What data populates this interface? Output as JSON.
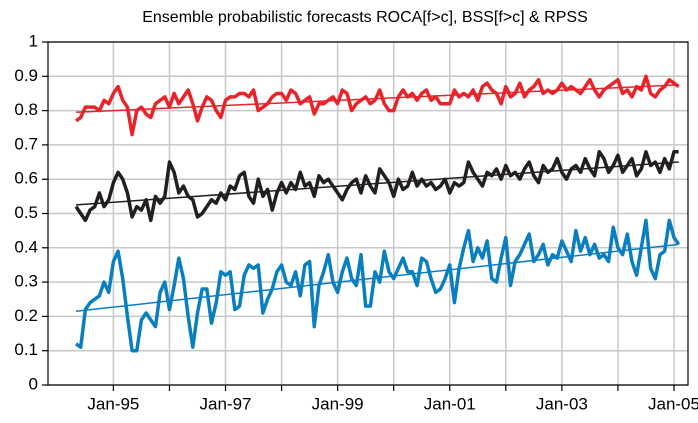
{
  "chart_data": {
    "type": "line",
    "title": "Ensemble probabilistic forecasts ROCA[f>c], BSS[f>c] & RPSS",
    "x": [
      "1994-05",
      "1994-06",
      "1994-07",
      "1994-08",
      "1994-09",
      "1994-10",
      "1994-11",
      "1994-12",
      "1995-01",
      "1995-02",
      "1995-03",
      "1995-04",
      "1995-05",
      "1995-06",
      "1995-07",
      "1995-08",
      "1995-09",
      "1995-10",
      "1995-11",
      "1995-12",
      "1996-01",
      "1996-02",
      "1996-03",
      "1996-04",
      "1996-05",
      "1996-06",
      "1996-07",
      "1996-08",
      "1996-09",
      "1996-10",
      "1996-11",
      "1996-12",
      "1997-01",
      "1997-02",
      "1997-03",
      "1997-04",
      "1997-05",
      "1997-06",
      "1997-07",
      "1997-08",
      "1997-09",
      "1997-10",
      "1997-11",
      "1997-12",
      "1998-01",
      "1998-02",
      "1998-03",
      "1998-04",
      "1998-05",
      "1998-06",
      "1998-07",
      "1998-08",
      "1998-09",
      "1998-10",
      "1998-11",
      "1998-12",
      "1999-01",
      "1999-02",
      "1999-03",
      "1999-04",
      "1999-05",
      "1999-06",
      "1999-07",
      "1999-08",
      "1999-09",
      "1999-10",
      "1999-11",
      "1999-12",
      "2000-01",
      "2000-02",
      "2000-03",
      "2000-04",
      "2000-05",
      "2000-06",
      "2000-07",
      "2000-08",
      "2000-09",
      "2000-10",
      "2000-11",
      "2000-12",
      "2001-01",
      "2001-02",
      "2001-03",
      "2001-04",
      "2001-05",
      "2001-06",
      "2001-07",
      "2001-08",
      "2001-09",
      "2001-10",
      "2001-11",
      "2001-12",
      "2002-01",
      "2002-02",
      "2002-03",
      "2002-04",
      "2002-05",
      "2002-06",
      "2002-07",
      "2002-08",
      "2002-09",
      "2002-10",
      "2002-11",
      "2002-12",
      "2003-01",
      "2003-02",
      "2003-03",
      "2003-04",
      "2003-05",
      "2003-06",
      "2003-07",
      "2003-08",
      "2003-09",
      "2003-10",
      "2003-11",
      "2003-12",
      "2004-01",
      "2004-02",
      "2004-03",
      "2004-04",
      "2004-05",
      "2004-06",
      "2004-07",
      "2004-08",
      "2004-09",
      "2004-10",
      "2004-11",
      "2004-12",
      "2005-01",
      "2005-02"
    ],
    "series": [
      {
        "color": "#e8232a",
        "values": [
          0.77,
          0.78,
          0.81,
          0.81,
          0.81,
          0.8,
          0.83,
          0.82,
          0.85,
          0.87,
          0.83,
          0.81,
          0.73,
          0.8,
          0.81,
          0.79,
          0.78,
          0.82,
          0.83,
          0.84,
          0.81,
          0.85,
          0.82,
          0.84,
          0.86,
          0.82,
          0.77,
          0.81,
          0.84,
          0.83,
          0.8,
          0.78,
          0.83,
          0.84,
          0.84,
          0.85,
          0.85,
          0.84,
          0.86,
          0.8,
          0.81,
          0.82,
          0.84,
          0.85,
          0.85,
          0.83,
          0.86,
          0.85,
          0.82,
          0.83,
          0.84,
          0.79,
          0.82,
          0.82,
          0.83,
          0.84,
          0.82,
          0.86,
          0.85,
          0.8,
          0.82,
          0.83,
          0.84,
          0.82,
          0.83,
          0.86,
          0.82,
          0.8,
          0.8,
          0.84,
          0.86,
          0.84,
          0.85,
          0.83,
          0.85,
          0.86,
          0.83,
          0.84,
          0.82,
          0.82,
          0.82,
          0.86,
          0.84,
          0.85,
          0.84,
          0.86,
          0.83,
          0.87,
          0.88,
          0.86,
          0.85,
          0.82,
          0.87,
          0.84,
          0.85,
          0.88,
          0.84,
          0.86,
          0.87,
          0.89,
          0.85,
          0.86,
          0.85,
          0.86,
          0.88,
          0.86,
          0.87,
          0.86,
          0.85,
          0.87,
          0.89,
          0.86,
          0.84,
          0.86,
          0.87,
          0.88,
          0.89,
          0.85,
          0.86,
          0.84,
          0.87,
          0.86,
          0.9,
          0.85,
          0.84,
          0.86,
          0.87,
          0.89,
          0.88,
          0.87
        ]
      },
      {
        "color": "#231f20",
        "values": [
          0.52,
          0.5,
          0.48,
          0.51,
          0.52,
          0.56,
          0.52,
          0.54,
          0.59,
          0.62,
          0.6,
          0.56,
          0.49,
          0.52,
          0.51,
          0.54,
          0.48,
          0.55,
          0.53,
          0.55,
          0.65,
          0.62,
          0.56,
          0.58,
          0.55,
          0.54,
          0.49,
          0.5,
          0.52,
          0.54,
          0.53,
          0.56,
          0.54,
          0.58,
          0.57,
          0.61,
          0.62,
          0.55,
          0.53,
          0.6,
          0.55,
          0.57,
          0.51,
          0.56,
          0.59,
          0.56,
          0.59,
          0.57,
          0.62,
          0.58,
          0.59,
          0.55,
          0.61,
          0.59,
          0.6,
          0.58,
          0.56,
          0.54,
          0.57,
          0.59,
          0.6,
          0.56,
          0.61,
          0.58,
          0.56,
          0.63,
          0.61,
          0.59,
          0.55,
          0.6,
          0.57,
          0.58,
          0.62,
          0.58,
          0.6,
          0.58,
          0.59,
          0.57,
          0.58,
          0.6,
          0.56,
          0.59,
          0.58,
          0.59,
          0.65,
          0.62,
          0.6,
          0.58,
          0.62,
          0.61,
          0.63,
          0.6,
          0.64,
          0.61,
          0.62,
          0.6,
          0.63,
          0.65,
          0.61,
          0.59,
          0.64,
          0.62,
          0.63,
          0.66,
          0.62,
          0.6,
          0.63,
          0.64,
          0.62,
          0.66,
          0.63,
          0.61,
          0.68,
          0.66,
          0.62,
          0.64,
          0.67,
          0.62,
          0.64,
          0.66,
          0.61,
          0.63,
          0.68,
          0.64,
          0.65,
          0.62,
          0.66,
          0.63,
          0.68,
          0.68
        ]
      },
      {
        "color": "#0a7fc0",
        "values": [
          0.12,
          0.11,
          0.22,
          0.24,
          0.25,
          0.26,
          0.3,
          0.27,
          0.36,
          0.39,
          0.31,
          0.2,
          0.1,
          0.1,
          0.19,
          0.21,
          0.19,
          0.17,
          0.27,
          0.3,
          0.22,
          0.29,
          0.37,
          0.31,
          0.2,
          0.11,
          0.21,
          0.28,
          0.28,
          0.18,
          0.24,
          0.33,
          0.32,
          0.33,
          0.22,
          0.23,
          0.32,
          0.35,
          0.34,
          0.35,
          0.21,
          0.25,
          0.28,
          0.33,
          0.35,
          0.3,
          0.29,
          0.33,
          0.26,
          0.35,
          0.36,
          0.17,
          0.29,
          0.33,
          0.38,
          0.3,
          0.27,
          0.33,
          0.37,
          0.31,
          0.29,
          0.38,
          0.23,
          0.23,
          0.33,
          0.3,
          0.39,
          0.33,
          0.31,
          0.34,
          0.37,
          0.33,
          0.33,
          0.29,
          0.37,
          0.36,
          0.31,
          0.27,
          0.28,
          0.31,
          0.35,
          0.24,
          0.34,
          0.4,
          0.45,
          0.36,
          0.4,
          0.37,
          0.42,
          0.31,
          0.3,
          0.37,
          0.43,
          0.29,
          0.36,
          0.38,
          0.41,
          0.44,
          0.36,
          0.38,
          0.41,
          0.35,
          0.38,
          0.37,
          0.42,
          0.39,
          0.36,
          0.45,
          0.39,
          0.43,
          0.38,
          0.41,
          0.37,
          0.38,
          0.36,
          0.46,
          0.4,
          0.38,
          0.44,
          0.36,
          0.32,
          0.4,
          0.48,
          0.34,
          0.31,
          0.38,
          0.39,
          0.48,
          0.43,
          0.41
        ]
      },
      {
        "color": "#e8232a",
        "x": [
          "1994-05",
          "2005-02"
        ],
        "values": [
          0.795,
          0.875
        ]
      },
      {
        "color": "#231f20",
        "x": [
          "1994-05",
          "2005-02"
        ],
        "values": [
          0.525,
          0.65
        ]
      },
      {
        "color": "#0a7fc0",
        "x": [
          "1994-05",
          "2005-02"
        ],
        "values": [
          0.215,
          0.41
        ]
      }
    ],
    "xlim": [
      "1993-11",
      "2005-04"
    ],
    "xticks": [
      {
        "value": "1995-01",
        "label": "Jan-95"
      },
      {
        "value": "1997-01",
        "label": "Jan-97"
      },
      {
        "value": "1999-01",
        "label": "Jan-99"
      },
      {
        "value": "2001-01",
        "label": "Jan-01"
      },
      {
        "value": "2003-01",
        "label": "Jan-03"
      },
      {
        "value": "2005-01",
        "label": "Jan-05"
      }
    ],
    "xminor": [
      "1996-01",
      "1998-01",
      "2000-01",
      "2002-01",
      "2004-01"
    ],
    "ylim": [
      0,
      1
    ],
    "yticks": [
      0,
      0.1,
      0.2,
      0.3,
      0.4,
      0.5,
      0.6,
      0.7,
      0.8,
      0.9,
      1
    ],
    "grid": true
  }
}
